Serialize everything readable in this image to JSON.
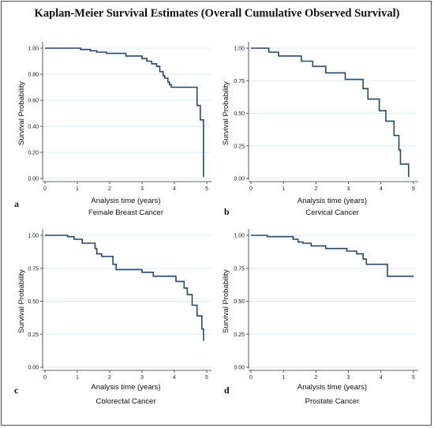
{
  "figure_title": "Kaplan-Meier Survival Estimates (Overall Cumulative Observed Survival)",
  "colors": {
    "curve": "#24476e",
    "grid": "#daeef3",
    "axis": "#333333"
  },
  "chart_data": [
    {
      "panel_label": "a",
      "subtitle": "Female Breast Cancer",
      "type": "line",
      "xlabel": "Analysis time (years)",
      "ylabel": "Survival Probability",
      "xlim": [
        0,
        5
      ],
      "ylim": [
        0,
        1
      ],
      "xticks": [
        "0",
        "1",
        "2",
        "3",
        "4",
        "5"
      ],
      "yticks": [
        "0.00",
        "0.20",
        "0.40",
        "0.60",
        "0.80",
        "1.00"
      ],
      "yticks_values": [
        0,
        0.2,
        0.4,
        0.6,
        0.8,
        1.0
      ],
      "series": [
        {
          "step": true,
          "points": [
            [
              0,
              1.0
            ],
            [
              1.1,
              0.99
            ],
            [
              1.4,
              0.98
            ],
            [
              1.6,
              0.97
            ],
            [
              1.9,
              0.96
            ],
            [
              2.5,
              0.94
            ],
            [
              3.0,
              0.92
            ],
            [
              3.15,
              0.9
            ],
            [
              3.3,
              0.88
            ],
            [
              3.45,
              0.86
            ],
            [
              3.55,
              0.82
            ],
            [
              3.65,
              0.79
            ],
            [
              3.7,
              0.77
            ],
            [
              3.8,
              0.74
            ],
            [
              3.85,
              0.72
            ],
            [
              3.9,
              0.7
            ],
            [
              4.7,
              0.56
            ],
            [
              4.8,
              0.45
            ],
            [
              4.9,
              0.01
            ]
          ]
        }
      ]
    },
    {
      "panel_label": "b",
      "subtitle": "Cervical Cancer",
      "type": "line",
      "xlabel": "Analysis time (years)",
      "ylabel": "Survival Probability",
      "xlim": [
        0,
        5
      ],
      "ylim": [
        0,
        1
      ],
      "xticks": [
        "0",
        "1",
        "2",
        "3",
        "4",
        "5"
      ],
      "yticks": [
        "0.00",
        "0.25",
        "0.50",
        "0.75",
        "1.00"
      ],
      "yticks_values": [
        0,
        0.25,
        0.5,
        0.75,
        1.0
      ],
      "series": [
        {
          "step": true,
          "points": [
            [
              0,
              1.0
            ],
            [
              0.55,
              0.97
            ],
            [
              0.85,
              0.94
            ],
            [
              1.55,
              0.9
            ],
            [
              1.9,
              0.86
            ],
            [
              2.3,
              0.81
            ],
            [
              2.9,
              0.76
            ],
            [
              3.45,
              0.69
            ],
            [
              3.6,
              0.61
            ],
            [
              3.95,
              0.52
            ],
            [
              4.15,
              0.44
            ],
            [
              4.4,
              0.33
            ],
            [
              4.55,
              0.22
            ],
            [
              4.6,
              0.11
            ],
            [
              4.85,
              0.01
            ]
          ]
        }
      ]
    },
    {
      "panel_label": "c",
      "subtitle": "Colorectal Cancer",
      "type": "line",
      "xlabel": "Analysis time (years)",
      "ylabel": "Survival Probability",
      "xlim": [
        0,
        5
      ],
      "ylim": [
        0,
        1
      ],
      "xticks": [
        "0",
        "1",
        "2",
        "3",
        "4",
        "5"
      ],
      "yticks": [
        "0.00",
        "0.25",
        "0.50",
        "0.75",
        "1.00"
      ],
      "yticks_values": [
        0,
        0.25,
        0.5,
        0.75,
        1.0
      ],
      "series": [
        {
          "step": true,
          "points": [
            [
              0,
              1.0
            ],
            [
              0.7,
              0.99
            ],
            [
              0.9,
              0.97
            ],
            [
              1.15,
              0.94
            ],
            [
              1.55,
              0.9
            ],
            [
              1.6,
              0.86
            ],
            [
              1.75,
              0.84
            ],
            [
              2.1,
              0.78
            ],
            [
              2.2,
              0.74
            ],
            [
              3.0,
              0.72
            ],
            [
              3.35,
              0.69
            ],
            [
              4.05,
              0.65
            ],
            [
              4.3,
              0.6
            ],
            [
              4.4,
              0.55
            ],
            [
              4.55,
              0.47
            ],
            [
              4.7,
              0.39
            ],
            [
              4.85,
              0.29
            ],
            [
              4.9,
              0.2
            ]
          ]
        }
      ]
    },
    {
      "panel_label": "d",
      "subtitle": "Prostate Cancer",
      "type": "line",
      "xlabel": "Analysis time (years)",
      "ylabel": "Survival Probability",
      "xlim": [
        0,
        5
      ],
      "ylim": [
        0,
        1
      ],
      "xticks": [
        "0",
        "1",
        "2",
        "3",
        "4",
        "5"
      ],
      "yticks": [
        "0.00",
        "0.25",
        "0.50",
        "0.75",
        "1.00"
      ],
      "yticks_values": [
        0,
        0.25,
        0.5,
        0.75,
        1.0
      ],
      "series": [
        {
          "step": true,
          "points": [
            [
              0,
              1.0
            ],
            [
              0.5,
              0.99
            ],
            [
              1.3,
              0.97
            ],
            [
              1.45,
              0.95
            ],
            [
              1.6,
              0.94
            ],
            [
              1.85,
              0.92
            ],
            [
              2.3,
              0.9
            ],
            [
              2.95,
              0.88
            ],
            [
              3.25,
              0.86
            ],
            [
              3.45,
              0.82
            ],
            [
              3.55,
              0.78
            ],
            [
              4.2,
              0.69
            ],
            [
              5.0,
              0.69
            ]
          ]
        }
      ]
    }
  ]
}
